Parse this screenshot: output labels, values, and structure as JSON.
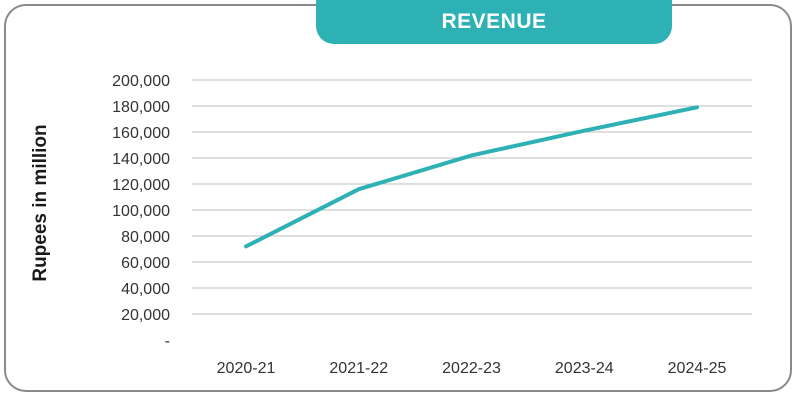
{
  "chart_data": {
    "type": "line",
    "title": "REVENUE",
    "xlabel": "",
    "ylabel": "Rupees in million",
    "categories": [
      "2020-21",
      "2021-22",
      "2022-23",
      "2023-24",
      "2024-25"
    ],
    "series": [
      {
        "values": [
          72000,
          116000,
          142000,
          161000,
          179000
        ]
      }
    ],
    "y_ticks": [
      0,
      20000,
      40000,
      60000,
      80000,
      100000,
      120000,
      140000,
      160000,
      180000,
      200000
    ],
    "y_tick_labels": [
      "-",
      "20,000",
      "40,000",
      "60,000",
      "80,000",
      "100,000",
      "120,000",
      "140,000",
      "160,000",
      "180,000",
      "200,000"
    ],
    "ylim": [
      0,
      200000
    ],
    "grid": true,
    "legend": "none",
    "colors": {
      "line": "#2db1b5",
      "grid": "#bfbfbf",
      "title_bg": "#2db1b5"
    }
  }
}
